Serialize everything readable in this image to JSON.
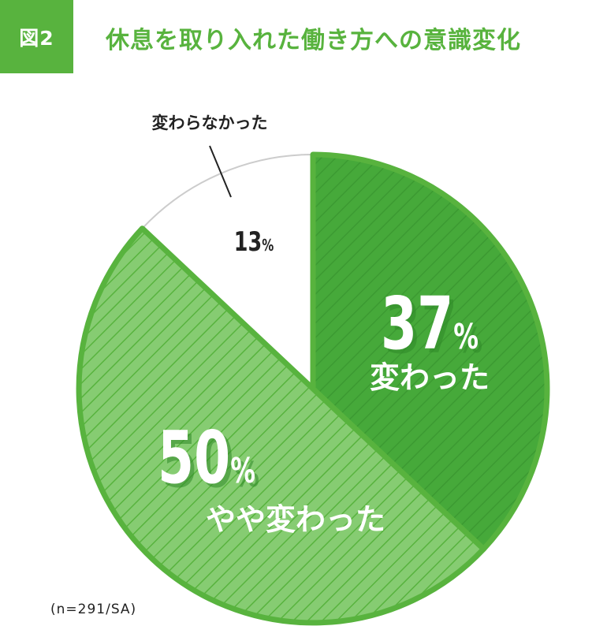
{
  "figure_label": "図2",
  "title": "休息を取り入れた働き方への意識変化",
  "sample_note": "(n=291/SA)",
  "colors": {
    "brand_green": "#58b33e",
    "dark_green": "#4aac3c",
    "light_green": "#7fca6b",
    "outline_green": "#58b33e",
    "gray_outline": "#cccccc",
    "text_dark": "#222222"
  },
  "chart_data": {
    "type": "pie",
    "title": "休息を取り入れた働き方への意識変化",
    "unit": "%",
    "slices": [
      {
        "label": "変わった",
        "value": 37,
        "value_text": "37",
        "unit_text": "%"
      },
      {
        "label": "やや変わった",
        "value": 50,
        "value_text": "50",
        "unit_text": "%"
      },
      {
        "label": "変わらなかった",
        "value": 13,
        "value_text": "13",
        "unit_text": "%"
      }
    ],
    "start": "12 o'clock",
    "direction": "clockwise",
    "legend": "none"
  }
}
